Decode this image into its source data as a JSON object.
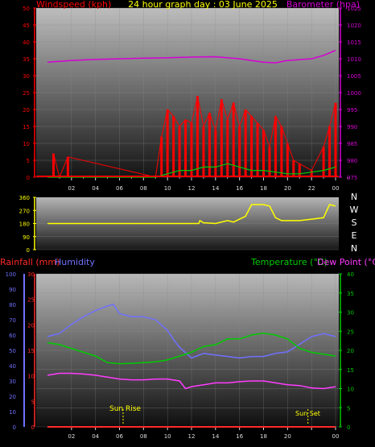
{
  "title": "24 hour graph day : 03 June 2025",
  "colors": {
    "wind": "#ff0000",
    "baro": "#d600d6",
    "dir": "#ffff00",
    "rain": "#ff2a2a",
    "hum": "#7070ff",
    "temp": "#00cc00",
    "dew": "#ff3cff",
    "tick": "#ffff00"
  },
  "chart_data": [
    {
      "type": "line",
      "title": "24 hour graph day : 03 June 2025",
      "ylabel_left": "Windspeed (kph)",
      "ylabel_right": "Barometer (hpa)",
      "ylim_left": [
        0,
        50
      ],
      "ylim_right": [
        975,
        1025
      ],
      "yticks_left": [
        0,
        5,
        10,
        15,
        20,
        25,
        30,
        35,
        40,
        45,
        50
      ],
      "yticks_right": [
        975,
        980,
        985,
        990,
        995,
        1000,
        1005,
        1010,
        1015,
        1020,
        1025
      ],
      "xticks": [
        "02",
        "04",
        "06",
        "08",
        "10",
        "12",
        "14",
        "16",
        "18",
        "20",
        "22",
        "00"
      ],
      "x_hours": [
        1,
        2,
        3,
        4,
        5,
        6,
        7,
        8,
        9,
        10,
        11,
        12,
        13,
        14,
        15,
        16,
        17,
        18,
        19,
        20,
        21,
        22,
        23,
        24,
        25
      ],
      "series": [
        {
          "name": "Barometer (hpa)",
          "x": [
            0,
            2,
            4,
            6,
            8,
            10,
            12,
            14,
            16,
            17,
            18,
            19,
            20,
            22,
            23,
            24
          ],
          "y": [
            1009,
            1009.5,
            1009.8,
            1010,
            1010.2,
            1010.3,
            1010.5,
            1010.6,
            1010,
            1009.5,
            1009,
            1008.8,
            1009.5,
            1010,
            1011,
            1012.5
          ]
        },
        {
          "name": "Windspeed peak (kph)",
          "x": [
            0.5,
            1,
            1.7,
            9,
            9.5,
            10,
            10.5,
            11,
            11.5,
            12,
            12.5,
            13,
            13.5,
            14,
            14.5,
            15,
            15.5,
            16,
            16.5,
            17,
            17.5,
            18,
            18.5,
            19,
            19.5,
            20,
            20.5,
            21,
            22,
            23,
            23.5,
            24
          ],
          "y": [
            7,
            0,
            6,
            0,
            12,
            20,
            18,
            15,
            17,
            16,
            24,
            15,
            19,
            14,
            23,
            17,
            22,
            15,
            20,
            18,
            16,
            14,
            9,
            18,
            15,
            10,
            5,
            4,
            2,
            9,
            15,
            22
          ]
        },
        {
          "name": "Windspeed average (kph)",
          "x": [
            0,
            9,
            10,
            11,
            12,
            13,
            14,
            15,
            16,
            17,
            18,
            19,
            20,
            21,
            22,
            23,
            24
          ],
          "y": [
            0,
            0,
            1,
            2,
            2,
            3,
            3,
            4,
            3,
            2,
            2,
            1.5,
            1,
            1,
            1.5,
            2,
            3
          ]
        }
      ]
    },
    {
      "type": "line",
      "ylabel_right": "N W S E N",
      "yticks_left": [
        0,
        90,
        180,
        270,
        360
      ],
      "compass": [
        "N",
        "W",
        "S",
        "E",
        "N"
      ],
      "ylim": [
        0,
        360
      ],
      "series": [
        {
          "name": "Wind direction",
          "x": [
            0,
            9,
            12.6,
            12.7,
            13,
            14,
            15,
            15.5,
            16,
            16.5,
            17,
            17.5,
            18,
            18.5,
            19,
            19.5,
            20,
            21,
            22,
            23,
            23.5,
            24
          ],
          "y": [
            180,
            180,
            180,
            200,
            185,
            180,
            200,
            190,
            210,
            230,
            310,
            310,
            310,
            300,
            220,
            200,
            200,
            200,
            210,
            220,
            310,
            300
          ]
        }
      ]
    },
    {
      "type": "line",
      "ylabel_left": "Rainfall (mm)",
      "ylabel_left2": "Humidity",
      "ylabel_right": "Temperature (°C)",
      "ylabel_right2": "Dew Point (°C)",
      "yticks_humidity": [
        0,
        10,
        20,
        30,
        40,
        50,
        60,
        70,
        80,
        90,
        100
      ],
      "yticks_rain": [
        0,
        5,
        10,
        15,
        20,
        25,
        30
      ],
      "yticks_temp": [
        0,
        5,
        10,
        15,
        20,
        25,
        30,
        35,
        40
      ],
      "ylim_humidity": [
        0,
        100
      ],
      "ylim_rain": [
        0,
        30
      ],
      "ylim_temp": [
        0,
        40
      ],
      "xticks": [
        "02",
        "04",
        "06",
        "08",
        "10",
        "12",
        "14",
        "16",
        "18",
        "20",
        "Sun Set",
        "00"
      ],
      "annotations": [
        "Sun Rise",
        "Sun Set"
      ],
      "series": [
        {
          "name": "Humidity",
          "x": [
            0,
            1,
            2,
            3,
            4,
            5,
            5.5,
            6,
            7,
            8,
            9,
            10,
            10.5,
            11,
            12,
            13,
            14,
            15,
            16,
            17,
            18,
            19,
            20,
            21,
            22,
            23,
            24
          ],
          "y": [
            59,
            61,
            67,
            72,
            76,
            79,
            80,
            74,
            72,
            72,
            70,
            63,
            57,
            52,
            45,
            48,
            47,
            46,
            45,
            46,
            46,
            48,
            49,
            54,
            59,
            61,
            59
          ]
        },
        {
          "name": "Temperature (°C)",
          "x": [
            0,
            1,
            2,
            3,
            4,
            5,
            6,
            7,
            8,
            9,
            10,
            11,
            12,
            13,
            14,
            15,
            16,
            17,
            18,
            19,
            20,
            21,
            22,
            23,
            24
          ],
          "y": [
            22,
            21.5,
            20.5,
            19.5,
            18.5,
            16.8,
            16.5,
            16.6,
            16.8,
            17,
            17.5,
            18.5,
            19.5,
            21,
            21.5,
            23,
            23,
            24,
            24.5,
            24,
            23,
            20.5,
            19.5,
            19,
            18.5
          ]
        },
        {
          "name": "Dew Point (°C)",
          "x": [
            0,
            1,
            2,
            3,
            4,
            5,
            6,
            7,
            8,
            9,
            10,
            11,
            11.5,
            12,
            13,
            14,
            15,
            16,
            17,
            18,
            19,
            20,
            21,
            22,
            23,
            24
          ],
          "y": [
            13.5,
            14,
            14,
            13.8,
            13.5,
            13,
            12.5,
            12.3,
            12.3,
            12.5,
            12.5,
            12,
            10,
            10.5,
            11,
            11.5,
            11.5,
            11.8,
            12,
            12,
            11.5,
            11,
            10.8,
            10.2,
            10,
            10.5
          ]
        },
        {
          "name": "Rainfall (mm)",
          "x": [
            0,
            24
          ],
          "y": [
            0,
            0
          ]
        }
      ]
    }
  ],
  "labels": {
    "wind": "Windspeed (kph)",
    "baro": "Barometer (hpa)",
    "rain": "Rainfall (mm)",
    "hum": "Humidity",
    "temp": "Temperature (°C)",
    "dew": "Dew Point (°C)",
    "sunrise": "Sun Rise",
    "sunset": "Sun Set"
  }
}
